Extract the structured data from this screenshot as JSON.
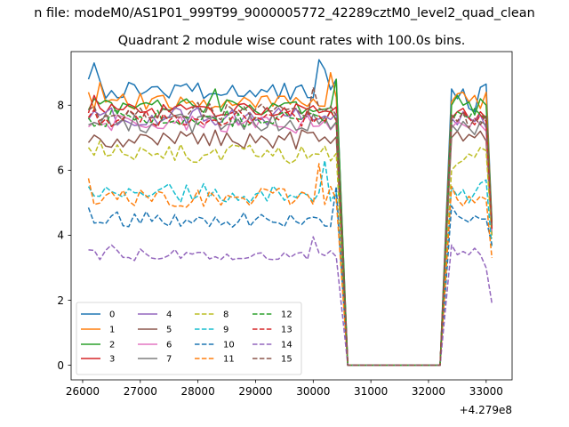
{
  "chart_data": {
    "type": "line",
    "suptitle": "n file: modeM0/AS1P01_999T99_9000005772_42289cztM0_level2_quad_clean",
    "title": "Quadrant 2 module wise count rates with 100.0s bins.",
    "xlabel": "",
    "ylabel": "",
    "x_offset_text": "+4.279e8",
    "xlim": [
      25800,
      33450
    ],
    "ylim": [
      -0.45,
      9.65
    ],
    "xticks": [
      26000,
      27000,
      28000,
      29000,
      30000,
      31000,
      32000,
      33000
    ],
    "xtick_labels": [
      "26000",
      "27000",
      "28000",
      "29000",
      "30000",
      "31000",
      "32000",
      "33000"
    ],
    "yticks": [
      0,
      2,
      4,
      6,
      8
    ],
    "ytick_labels": [
      "0",
      "2",
      "4",
      "6",
      "8"
    ],
    "grid": false,
    "legend": {
      "placement": "lower-left",
      "columns": 4
    },
    "segments": {
      "seg1": {
        "start": 26100,
        "end": 30400,
        "step": 100
      },
      "gap": {
        "start": 30600,
        "end": 32200,
        "step": 100,
        "value": 0
      },
      "seg2": {
        "start": 32400,
        "end": 33000,
        "step": 100
      },
      "final_x": 33100
    },
    "series": [
      {
        "name": "0",
        "color": "#1f77b4",
        "dash": "solid",
        "base": 8.45,
        "amp": 0.28,
        "seed": 1,
        "tail": 4.4,
        "over": {
          "26100": 8.8,
          "26200": 9.3,
          "26300": 8.75,
          "30100": 9.4,
          "30200": 9.1,
          "30400": 8.8
        },
        "seg2": [
          8.5,
          8.2,
          8.5,
          7.9,
          7.8,
          8.55,
          8.65
        ]
      },
      {
        "name": "1",
        "color": "#ff7f0e",
        "dash": "solid",
        "base": 8.1,
        "amp": 0.28,
        "seed": 2,
        "tail": 4.3,
        "over": {
          "26100": 8.4,
          "26300": 8.7,
          "30300": 9.0
        },
        "seg2": [
          8.1,
          8.35,
          8.4,
          8.1,
          8.3,
          7.9,
          8.4
        ]
      },
      {
        "name": "2",
        "color": "#2ca02c",
        "dash": "solid",
        "base": 7.95,
        "amp": 0.25,
        "seed": 3,
        "tail": 4.4,
        "over": {
          "28300": 8.5,
          "30400": 8.8
        },
        "seg2": [
          8.0,
          8.3,
          8.0,
          8.1,
          7.7,
          8.2,
          8.0
        ]
      },
      {
        "name": "3",
        "color": "#d62728",
        "dash": "solid",
        "base": 7.85,
        "amp": 0.25,
        "seed": 4,
        "tail": 4.2,
        "over": {
          "26200": 8.3
        },
        "seg2": [
          7.6,
          7.8,
          7.9,
          7.6,
          7.5,
          7.8,
          7.6
        ]
      },
      {
        "name": "4",
        "color": "#9467bd",
        "dash": "solid",
        "base": 7.65,
        "amp": 0.28,
        "seed": 5,
        "tail": 4.1,
        "over": {},
        "seg2": [
          7.6,
          7.4,
          7.8,
          7.6,
          7.5,
          7.7,
          7.3
        ]
      },
      {
        "name": "5",
        "color": "#8c564b",
        "dash": "solid",
        "base": 6.95,
        "amp": 0.3,
        "seed": 6,
        "tail": 4.0,
        "over": {
          "26100": 6.85
        },
        "seg2": [
          7.0,
          7.2,
          6.9,
          7.1,
          7.0,
          7.2,
          6.9
        ]
      },
      {
        "name": "6",
        "color": "#e377c2",
        "dash": "solid",
        "base": 7.4,
        "amp": 0.3,
        "seed": 7,
        "tail": 4.1,
        "over": {},
        "seg2": [
          7.3,
          7.5,
          7.4,
          7.3,
          7.6,
          7.4,
          7.2
        ]
      },
      {
        "name": "7",
        "color": "#7f7f7f",
        "dash": "solid",
        "base": 7.45,
        "amp": 0.3,
        "seed": 8,
        "tail": 4.2,
        "over": {},
        "seg2": [
          7.4,
          7.2,
          7.5,
          7.3,
          7.1,
          7.5,
          7.4
        ]
      },
      {
        "name": "8",
        "color": "#bcbd22",
        "dash": "dashed",
        "base": 6.5,
        "amp": 0.3,
        "seed": 9,
        "tail": 3.9,
        "over": {
          "26100": 6.7,
          "26300": 6.9
        },
        "seg2": [
          6.0,
          6.2,
          6.3,
          6.5,
          6.4,
          6.7,
          6.6
        ]
      },
      {
        "name": "9",
        "color": "#17becf",
        "dash": "dashed",
        "base": 5.3,
        "amp": 0.3,
        "seed": 10,
        "tail": 3.6,
        "over": {
          "26100": 5.5,
          "30200": 6.3
        },
        "seg2": [
          5.5,
          5.2,
          5.4,
          5.0,
          5.3,
          5.6,
          5.7
        ]
      },
      {
        "name": "10",
        "color": "#1f77b4",
        "dash": "dashed",
        "base": 4.5,
        "amp": 0.25,
        "seed": 11,
        "tail": 3.7,
        "over": {
          "26100": 4.85,
          "30400": 5.5
        },
        "seg2": [
          4.9,
          4.6,
          4.5,
          4.4,
          4.6,
          4.5,
          4.5
        ]
      },
      {
        "name": "11",
        "color": "#ff7f0e",
        "dash": "dashed",
        "base": 5.15,
        "amp": 0.3,
        "seed": 12,
        "tail": 3.3,
        "over": {
          "26100": 5.75,
          "30100": 6.2,
          "30300": 5.5
        },
        "seg2": [
          5.5,
          5.1,
          4.9,
          5.2,
          5.0,
          5.2,
          5.1
        ]
      },
      {
        "name": "12",
        "color": "#2ca02c",
        "dash": "dashed",
        "base": 7.6,
        "amp": 0.28,
        "seed": 13,
        "tail": 4.3,
        "over": {},
        "seg2": [
          7.5,
          7.8,
          7.7,
          7.6,
          7.9,
          7.7,
          7.6
        ]
      },
      {
        "name": "13",
        "color": "#d62728",
        "dash": "dashed",
        "base": 7.6,
        "amp": 0.28,
        "seed": 14,
        "tail": 4.2,
        "over": {},
        "seg2": [
          7.7,
          7.5,
          7.8,
          7.6,
          7.4,
          7.7,
          7.5
        ]
      },
      {
        "name": "14",
        "color": "#9467bd",
        "dash": "dashed",
        "base": 3.4,
        "amp": 0.18,
        "seed": 15,
        "tail": 1.9,
        "over": {
          "26100": 3.55,
          "26500": 3.7,
          "30000": 3.95
        },
        "seg2": [
          3.7,
          3.4,
          3.5,
          3.4,
          3.6,
          3.4,
          3.0
        ]
      },
      {
        "name": "15",
        "color": "#8c564b",
        "dash": "dashed",
        "base": 7.8,
        "amp": 0.3,
        "seed": 16,
        "tail": 4.3,
        "over": {
          "30000": 8.55
        },
        "seg2": [
          7.7,
          7.5,
          7.8,
          7.3,
          7.6,
          7.4,
          7.7
        ]
      }
    ]
  }
}
